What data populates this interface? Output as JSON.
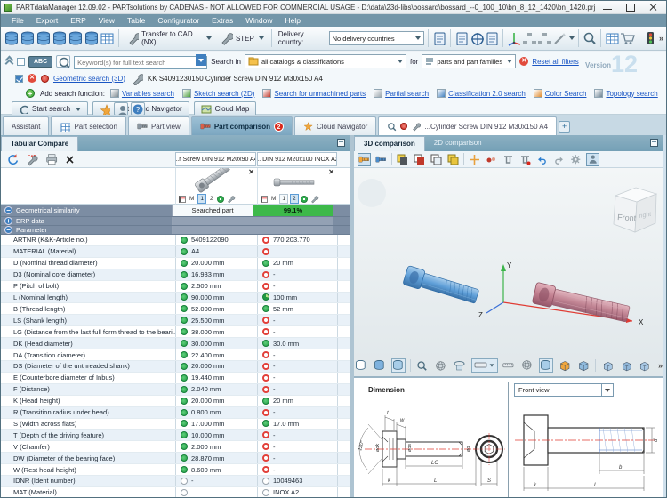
{
  "window": {
    "title": "PARTdataManager 12.09.02 - PARTsolutions by CADENAS - NOT ALLOWED FOR COMMERCIAL USAGE - D:\\data\\23d-libs\\bossard\\bossard_--0_100_10\\bn_8_12_1420\\bn_1420.prj"
  },
  "menubar": {
    "items": [
      "File",
      "Export",
      "ERP",
      "View",
      "Table",
      "Configurator",
      "Extras",
      "Window",
      "Help"
    ]
  },
  "toolbar": {
    "transfer_cad": "Transfer to CAD (NX)",
    "step": "STEP",
    "delivery_label": "Delivery country:",
    "delivery_value": "No delivery countries",
    "more_glyph": "»"
  },
  "search": {
    "abc": "ABC",
    "placeholder": "Keyword(s) for full text search",
    "search_in_label": "Search in",
    "search_in_value": "all catalogs & classifications",
    "for_label": "for",
    "for_value": "parts and part families",
    "reset_label": "Reset all filters",
    "version_label": "Version",
    "version_number": "12"
  },
  "geo_search": {
    "link": "Geometric search (3D)",
    "part": "KK S4091230150 Cylinder Screw DIN 912 M30x150 A4"
  },
  "add_search": {
    "label": "Add search function:",
    "links": [
      "Variables search",
      "Sketch search (2D)",
      "Search for unmachined parts",
      "Partial search",
      "Classification 2.0 search",
      "Color Search",
      "Topology search"
    ]
  },
  "actions": {
    "start_search": "Start search",
    "start_cloud": "Start Cloud Navigator",
    "cloud_map": "Cloud Map"
  },
  "tabs": {
    "assistant": "Assistant",
    "part_selection": "Part selection",
    "part_view": "Part view",
    "part_comparison": "Part comparison",
    "badge": "2",
    "cloud_navigator": "Cloud Navigator",
    "search_tab": "...Cylinder Screw DIN 912 M30x150 A4",
    "add": "+"
  },
  "left_panel": {
    "title": "Tabular Compare",
    "col1_header": "...r Screw DIN 912 M20x90 A4",
    "col2_header": "... DIN 912 M20x100 INOX A2",
    "mini": {
      "m": "M",
      "one": "1",
      "two": "2"
    },
    "similarity": {
      "label": "Geometrical similarity",
      "col1": "Searched part",
      "col2": "99.1%"
    },
    "erp_label": "ERP data",
    "parameter_label": "Parameter",
    "params": [
      {
        "label": "ARTNR (K&K-Article no.)",
        "s1": "green",
        "v1": "5409122090",
        "s2": "red",
        "v2": "770.203.770"
      },
      {
        "label": "MATERIAL (Material)",
        "s1": "green",
        "v1": "A4",
        "s2": "red",
        "v2": ""
      },
      {
        "label": "D (Nominal thread diameter)",
        "s1": "green",
        "v1": "20.000 mm",
        "s2": "green",
        "v2": "20 mm"
      },
      {
        "label": "D3 (Nominal core diameter)",
        "s1": "green",
        "v1": "16.933 mm",
        "s2": "red",
        "v2": "-"
      },
      {
        "label": "P (Pitch of bolt)",
        "s1": "green",
        "v1": "2.500 mm",
        "s2": "red",
        "v2": "-"
      },
      {
        "label": "L (Nominal length)",
        "s1": "green",
        "v1": "90.000 mm",
        "s2": "partial",
        "v2": "100 mm"
      },
      {
        "label": "B (Thread length)",
        "s1": "green",
        "v1": "52.000 mm",
        "s2": "green",
        "v2": "52 mm"
      },
      {
        "label": "LS (Shank length)",
        "s1": "green",
        "v1": "25.500 mm",
        "s2": "red",
        "v2": "-"
      },
      {
        "label": "LG (Distance from the last full form thread to the beari...",
        "s1": "green",
        "v1": "38.000 mm",
        "s2": "red",
        "v2": "-"
      },
      {
        "label": "DK (Head diameter)",
        "s1": "green",
        "v1": "30.000 mm",
        "s2": "green",
        "v2": "30.0 mm"
      },
      {
        "label": "DA (Transition diameter)",
        "s1": "green",
        "v1": "22.400 mm",
        "s2": "red",
        "v2": "-"
      },
      {
        "label": "DS (Diameter of the unthreaded shank)",
        "s1": "green",
        "v1": "20.000 mm",
        "s2": "red",
        "v2": "-"
      },
      {
        "label": "E (Counterbore diameter of Inbus)",
        "s1": "green",
        "v1": "19.440 mm",
        "s2": "red",
        "v2": "-"
      },
      {
        "label": "F (Distance)",
        "s1": "green",
        "v1": "2.040 mm",
        "s2": "red",
        "v2": "-"
      },
      {
        "label": "K (Head height)",
        "s1": "green",
        "v1": "20.000 mm",
        "s2": "green",
        "v2": "20 mm"
      },
      {
        "label": "R (Transition radius under head)",
        "s1": "green",
        "v1": "0.800 mm",
        "s2": "red",
        "v2": "-"
      },
      {
        "label": "S (Width across flats)",
        "s1": "green",
        "v1": "17.000 mm",
        "s2": "green",
        "v2": "17.0 mm"
      },
      {
        "label": "T (Depth of the driving feature)",
        "s1": "green",
        "v1": "10.000 mm",
        "s2": "red",
        "v2": "-"
      },
      {
        "label": "V (Chamfer)",
        "s1": "green",
        "v1": "2.000 mm",
        "s2": "red",
        "v2": "-"
      },
      {
        "label": "DW (Diameter of the bearing face)",
        "s1": "green",
        "v1": "28.870 mm",
        "s2": "red",
        "v2": "-"
      },
      {
        "label": "W (Rest head height)",
        "s1": "green",
        "v1": "8.600 mm",
        "s2": "red",
        "v2": "-"
      },
      {
        "label": "IDNR (Ident number)",
        "s1": "gray",
        "v1": "-",
        "s2": "gray",
        "v2": "10049463"
      },
      {
        "label": "MAT (Material)",
        "s1": "gray",
        "v1": "",
        "s2": "gray",
        "v2": "INOX A2"
      }
    ]
  },
  "right_panel": {
    "tab_3d": "3D comparison",
    "tab_2d": "2D comparison",
    "cube_front": "Front",
    "cube_right": "right",
    "axis_x": "X",
    "axis_y": "Y",
    "axis_z": "Z",
    "more_glyph": "»"
  },
  "dimension": {
    "title": "Dimension",
    "view_value": "Front view",
    "labels": {
      "t": "t",
      "w": "w",
      "angle": "120°",
      "dk": "ødk",
      "ds": "øds",
      "d": "ød",
      "lg": "LG",
      "k": "k",
      "l": "L",
      "s": "S",
      "b": "b",
      "k2": "k",
      "l2": "L",
      "d2": "d"
    }
  },
  "colors": {
    "similarity_green": "#3db94a",
    "match_green": "#2fae4e",
    "mismatch_red": "#e2403a",
    "screw_blue": "#5f9fd8",
    "screw_red": "#c9808f"
  }
}
